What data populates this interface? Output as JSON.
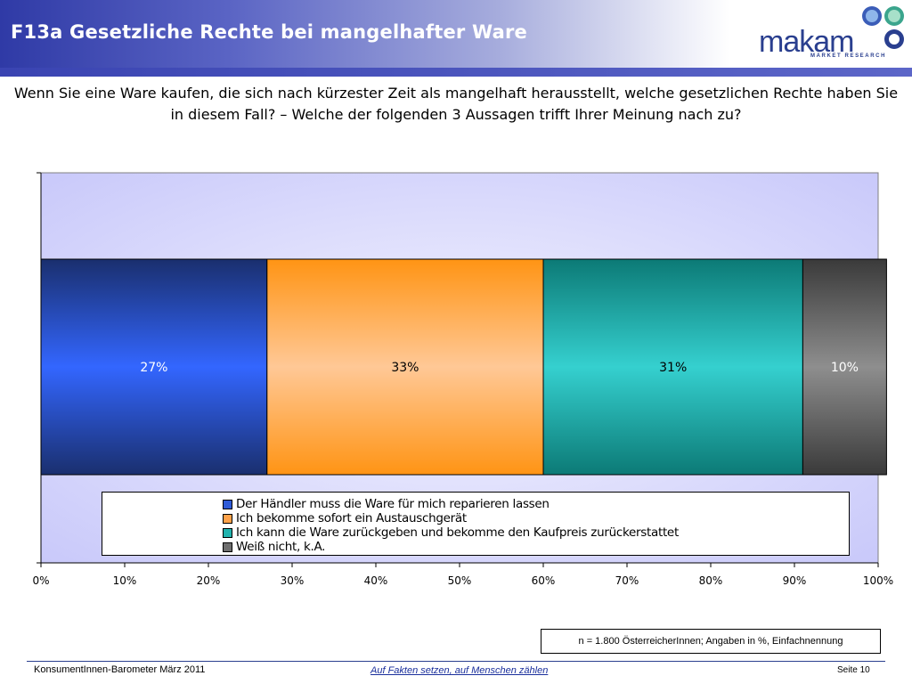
{
  "header": {
    "title": "F13a Gesetzliche Rechte bei mangelhafter Ware",
    "logo_text": "makam",
    "logo_subtext": "MARKET RESEARCH"
  },
  "question": "Wenn Sie eine Ware kaufen, die sich nach kürzester Zeit als mangelhaft herausstellt, welche gesetzlichen Rechte haben Sie in diesem Fall? – Welche der folgenden 3 Aussagen trifft Ihrer Meinung nach zu?",
  "chart_data": {
    "type": "bar",
    "orientation": "horizontal",
    "stacked": true,
    "percent_stacked": true,
    "categories": [
      ""
    ],
    "xlim": [
      0,
      100
    ],
    "x_ticks": [
      "0%",
      "10%",
      "20%",
      "30%",
      "40%",
      "50%",
      "60%",
      "70%",
      "80%",
      "90%",
      "100%"
    ],
    "legend_position": "bottom",
    "grid": false,
    "plot_background": "#d0d0fb",
    "series": [
      {
        "name": "Der Händler muss die Ware für mich reparieren lassen",
        "values": [
          27
        ],
        "label": "27%",
        "color": "#2f5bd8",
        "label_color": "#ffffff"
      },
      {
        "name": "Ich bekomme sofort ein Austauschgerät",
        "values": [
          33
        ],
        "label": "33%",
        "color": "#ffa24a",
        "label_color": "#000000"
      },
      {
        "name": "Ich kann die Ware zurückgeben und bekomme den Kaufpreis zurückerstattet",
        "values": [
          31
        ],
        "label": "31%",
        "color": "#22b3ae",
        "label_color": "#000000"
      },
      {
        "name": "Weiß nicht, k.A.",
        "values": [
          10
        ],
        "label": "10%",
        "color": "#6e6e6e",
        "label_color": "#ffffff"
      }
    ]
  },
  "note": "n = 1.800 ÖsterreicherInnen; Angaben in %, Einfachnennung",
  "footer": {
    "left": "KonsumentInnen-Barometer März  2011",
    "center": "Auf Fakten setzen, auf Menschen zählen",
    "right": "Seite 10"
  }
}
